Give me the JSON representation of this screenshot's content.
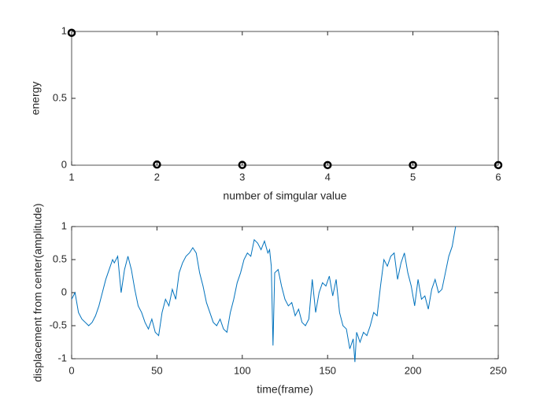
{
  "chart_data": [
    {
      "type": "scatter",
      "xlabel": "number of simgular value",
      "ylabel": "energy",
      "x": [
        1,
        2,
        3,
        4,
        5,
        6
      ],
      "values": [
        0.99,
        0.005,
        0.002,
        0.001,
        0.001,
        0.001
      ],
      "color": "#000000",
      "xlim": [
        1,
        6
      ],
      "xticks": [
        1,
        2,
        3,
        4,
        5,
        6
      ],
      "ylim": [
        0,
        1
      ],
      "yticks": [
        0,
        0.5,
        1
      ],
      "grid": false
    },
    {
      "type": "line",
      "xlabel": "time(frame)",
      "ylabel": "displacement from center(amplitude)",
      "x": [
        0,
        2,
        4,
        6,
        8,
        10,
        12,
        14,
        16,
        18,
        20,
        22,
        24,
        25,
        27,
        29,
        31,
        33,
        35,
        37,
        39,
        41,
        43,
        45,
        47,
        49,
        51,
        53,
        55,
        57,
        59,
        61,
        63,
        65,
        67,
        69,
        71,
        73,
        75,
        77,
        79,
        81,
        83,
        85,
        87,
        89,
        91,
        93,
        95,
        97,
        99,
        101,
        103,
        105,
        107,
        109,
        111,
        113,
        115,
        116,
        117,
        118,
        119,
        121,
        123,
        125,
        127,
        129,
        131,
        133,
        135,
        137,
        139,
        141,
        143,
        145,
        147,
        149,
        151,
        153,
        155,
        157,
        159,
        161,
        163,
        165,
        166,
        167,
        169,
        171,
        173,
        175,
        177,
        179,
        181,
        183,
        185,
        187,
        189,
        191,
        193,
        195,
        197,
        199,
        201,
        203,
        205,
        207,
        209,
        211,
        213,
        215,
        217,
        219,
        221,
        223,
        225
      ],
      "series": [
        {
          "name": "displacement",
          "color": "#0072bd",
          "values": [
            -0.1,
            0,
            -0.3,
            -0.4,
            -0.45,
            -0.5,
            -0.45,
            -0.35,
            -0.2,
            0,
            0.2,
            0.35,
            0.5,
            0.45,
            0.55,
            0,
            0.35,
            0.55,
            0.35,
            0.05,
            -0.2,
            -0.3,
            -0.45,
            -0.55,
            -0.4,
            -0.6,
            -0.65,
            -0.3,
            -0.1,
            -0.2,
            0.05,
            -0.1,
            0.3,
            0.45,
            0.55,
            0.6,
            0.68,
            0.6,
            0.3,
            0.1,
            -0.15,
            -0.3,
            -0.45,
            -0.5,
            -0.4,
            -0.55,
            -0.6,
            -0.3,
            -0.1,
            0.15,
            0.3,
            0.5,
            0.6,
            0.55,
            0.8,
            0.75,
            0.65,
            0.78,
            0.6,
            0.65,
            0.4,
            -0.8,
            0.3,
            0.35,
            0.1,
            -0.1,
            -0.2,
            -0.15,
            -0.35,
            -0.25,
            -0.45,
            -0.5,
            -0.4,
            0.2,
            -0.3,
            0,
            0.15,
            0.1,
            0.25,
            -0.05,
            0.2,
            -0.3,
            -0.5,
            -0.55,
            -0.85,
            -0.7,
            -1.05,
            -0.6,
            -0.75,
            -0.6,
            -0.65,
            -0.5,
            -0.3,
            -0.35,
            0.1,
            0.5,
            0.4,
            0.55,
            0.6,
            0.2,
            0.45,
            0.6,
            0.3,
            0.1,
            -0.2,
            0.2,
            -0.1,
            -0.05,
            -0.25,
            0.05,
            0.2,
            0,
            0.05,
            0.3,
            0.55,
            0.7,
            1.0
          ]
        }
      ],
      "xlim": [
        0,
        250
      ],
      "xticks": [
        0,
        50,
        100,
        150,
        200,
        250
      ],
      "ylim": [
        -1,
        1
      ],
      "yticks": [
        -1,
        -0.5,
        0,
        0.5,
        1
      ],
      "grid": false
    }
  ]
}
